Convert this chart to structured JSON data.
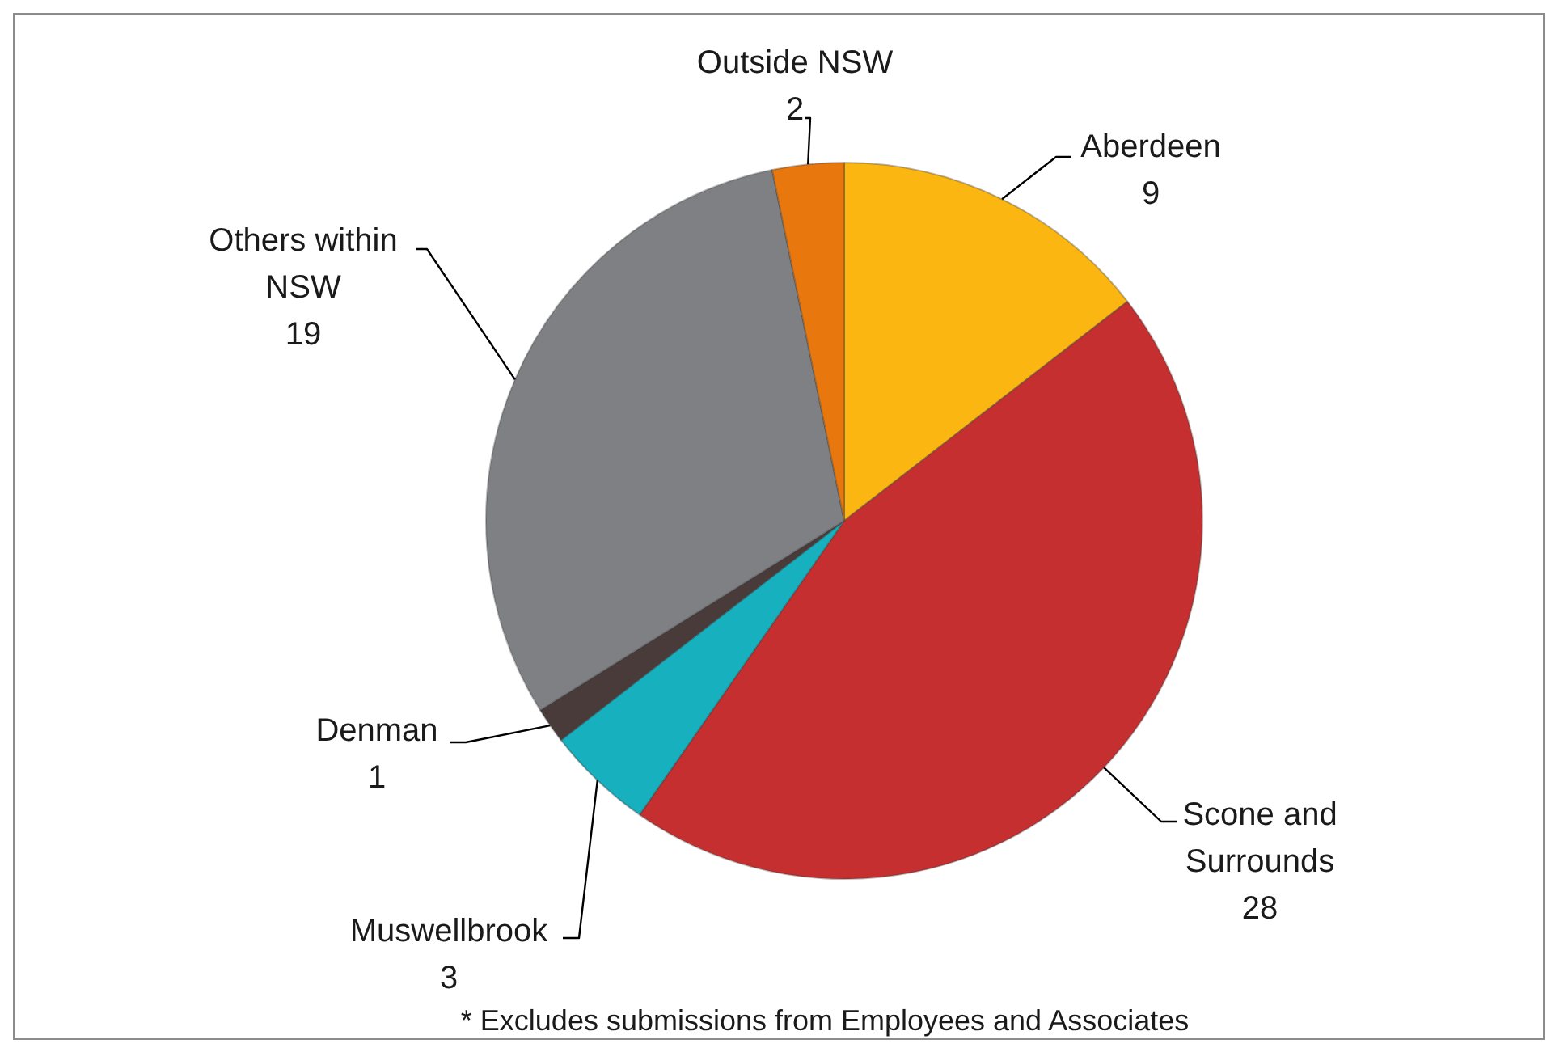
{
  "chart_data": {
    "type": "pie",
    "categories": [
      "Aberdeen",
      "Scone and Surrounds",
      "Muswellbrook",
      "Denman",
      "Others within NSW",
      "Outside NSW"
    ],
    "values": [
      9,
      28,
      3,
      1,
      19,
      2
    ],
    "colors": [
      "#fbb612",
      "#c62f2f",
      "#16b0bf",
      "#4a3b3b",
      "#7e8083",
      "#e8770e"
    ],
    "data_labels": true,
    "annotations": [
      "* Excludes submissions from Employees and Associates"
    ]
  }
}
